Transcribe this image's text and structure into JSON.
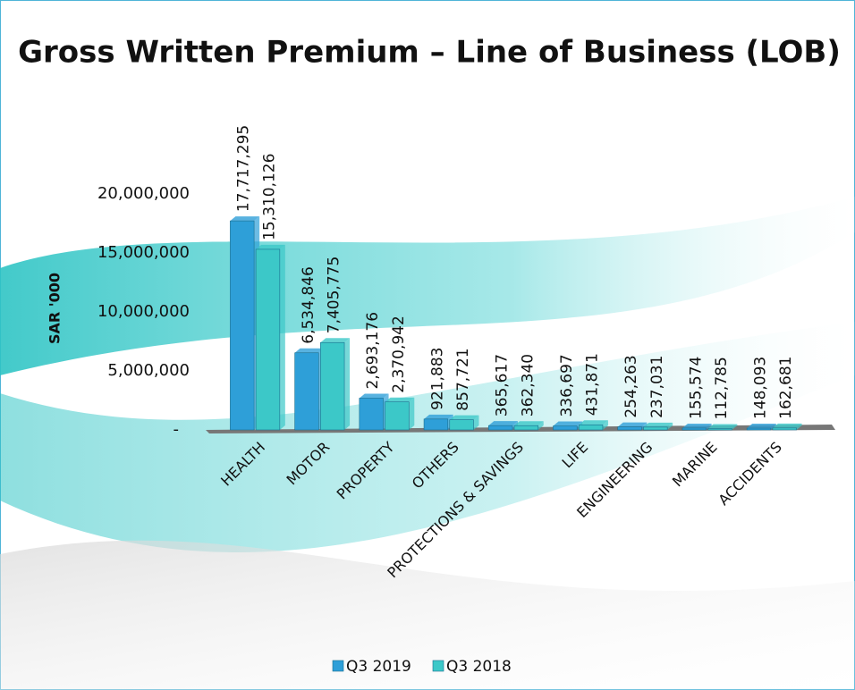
{
  "chart_data": {
    "type": "bar",
    "title": "Gross Written Premium – Line of Business (LOB)",
    "y_label": "SAR '000",
    "categories": [
      "HEALTH",
      "MOTOR",
      "PROPERTY",
      "OTHERS",
      "PROTECTIONS & SAVINGS",
      "LIFE",
      "ENGINEERING",
      "MARINE",
      "ACCIDENTS"
    ],
    "series": [
      {
        "name": "Q3 2019",
        "color": "#2e9fd8",
        "values": [
          17717295,
          6534846,
          2693176,
          921883,
          365617,
          336697,
          254263,
          155574,
          148093
        ],
        "value_labels": [
          "17,717,295",
          "6,534,846",
          "2,693,176",
          "921,883",
          "365,617",
          "336,697",
          "254,263",
          "155,574",
          "148,093"
        ]
      },
      {
        "name": "Q3 2018",
        "color": "#3cc8c8",
        "values": [
          15310126,
          7405775,
          2370942,
          857721,
          362340,
          431871,
          237031,
          112785,
          162681
        ],
        "value_labels": [
          "15,310,126",
          "7,405,775",
          "2,370,942",
          "857,721",
          "362,340",
          "431,871",
          "237,031",
          "112,785",
          "162,681"
        ]
      }
    ],
    "ylim": [
      0,
      20000000
    ],
    "yticks": [
      {
        "value": 0,
        "label": "-"
      },
      {
        "value": 5000000,
        "label": "5,000,000"
      },
      {
        "value": 10000000,
        "label": "10,000,000"
      },
      {
        "value": 15000000,
        "label": "15,000,000"
      },
      {
        "value": 20000000,
        "label": "20,000,000"
      }
    ],
    "grid": false,
    "legend": "bottom"
  }
}
